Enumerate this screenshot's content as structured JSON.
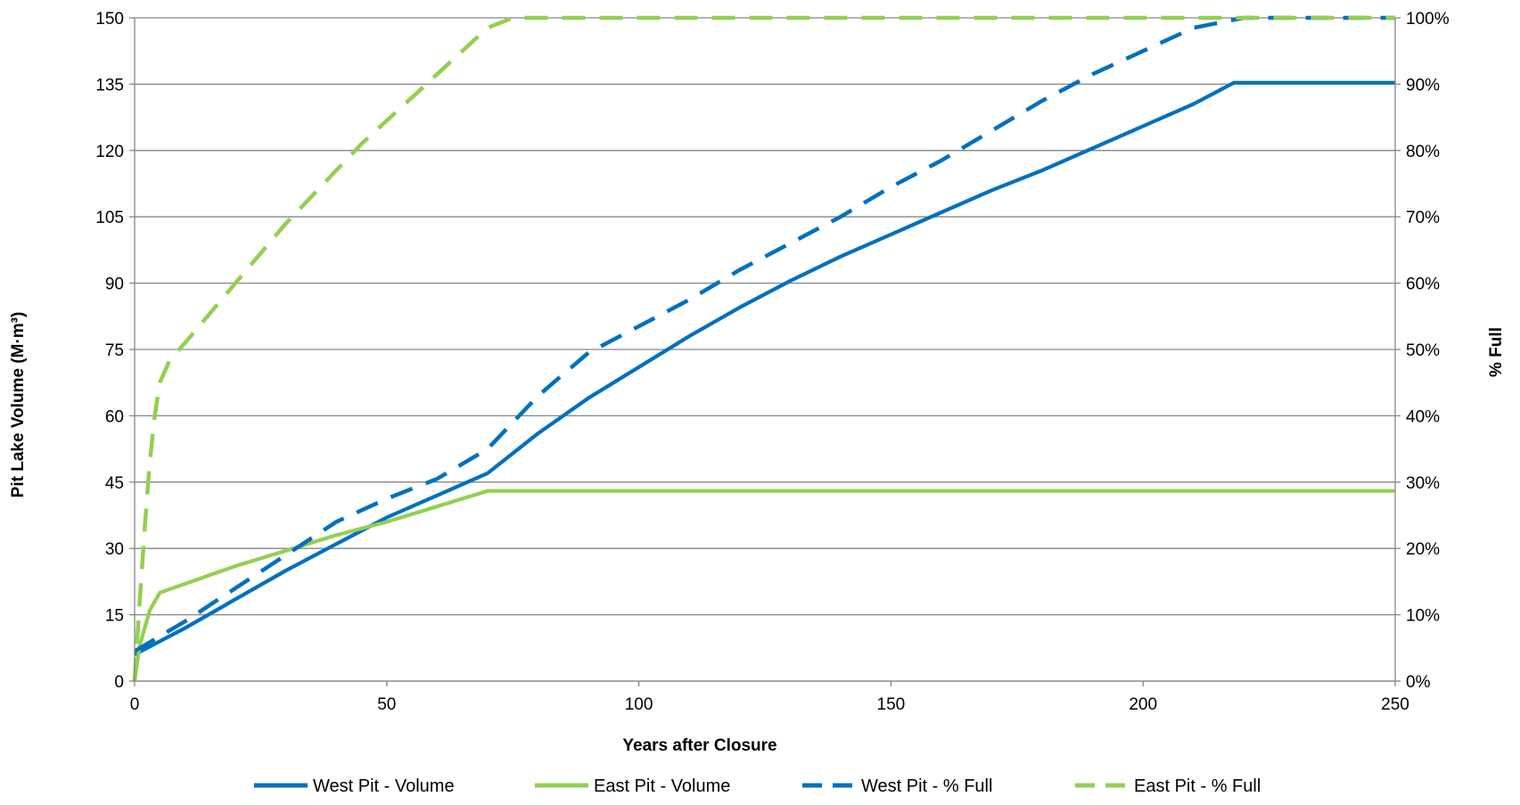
{
  "chart_data": {
    "type": "line",
    "title": "",
    "xlabel": "Years after Closure",
    "ylabel": "Pit Lake Volume (M·m³)",
    "y2label": "% Full",
    "xlim": [
      0,
      250
    ],
    "ylim": [
      0,
      150
    ],
    "y2lim": [
      0,
      100
    ],
    "x_ticks": [
      "0",
      "50",
      "100",
      "150",
      "200",
      "250"
    ],
    "y_ticks": [
      "0",
      "15",
      "30",
      "45",
      "60",
      "75",
      "90",
      "105",
      "120",
      "135",
      "150"
    ],
    "y2_ticks": [
      "0%",
      "10%",
      "20%",
      "30%",
      "40%",
      "50%",
      "60%",
      "70%",
      "80%",
      "90%",
      "100%"
    ],
    "grid": "horizontal",
    "legend_position": "bottom",
    "colors": {
      "blue": "#0070c0",
      "green": "#92d050",
      "grid": "#868686"
    },
    "series": [
      {
        "name": "West Pit - Volume",
        "axis": "left",
        "color": "#0070c0",
        "style": "solid",
        "x": [
          0,
          10,
          20,
          30,
          40,
          50,
          60,
          70,
          80,
          90,
          100,
          110,
          120,
          130,
          140,
          150,
          160,
          170,
          180,
          190,
          200,
          210,
          218,
          250
        ],
        "y": [
          6,
          12,
          18.5,
          25,
          31,
          37,
          42,
          47,
          56,
          64,
          71,
          78,
          84.5,
          90.5,
          96,
          101,
          106,
          111,
          115.5,
          120.5,
          125.5,
          130.5,
          135.3,
          135.3
        ]
      },
      {
        "name": "East Pit - Volume",
        "axis": "left",
        "color": "#92d050",
        "style": "solid",
        "x": [
          0,
          0.5,
          1,
          2,
          3,
          4,
          5,
          10,
          20,
          30,
          40,
          50,
          60,
          70,
          250
        ],
        "y": [
          0,
          4,
          8,
          12,
          16,
          18,
          20,
          22,
          26,
          29.5,
          33,
          36,
          39.5,
          43,
          43
        ]
      },
      {
        "name": "West Pit - % Full",
        "axis": "right",
        "color": "#0070c0",
        "style": "dashed",
        "x": [
          0,
          10,
          20,
          30,
          40,
          50,
          60,
          70,
          80,
          90,
          100,
          110,
          120,
          130,
          140,
          150,
          160,
          170,
          180,
          190,
          200,
          210,
          220,
          250
        ],
        "y": [
          4.5,
          9,
          14,
          19,
          24,
          27.5,
          30.5,
          35,
          43,
          49.5,
          53.5,
          57.5,
          62,
          66,
          70,
          74.5,
          78.5,
          83,
          87.5,
          91.5,
          95,
          98.5,
          100,
          100
        ]
      },
      {
        "name": "East Pit - % Full",
        "axis": "right",
        "color": "#92d050",
        "style": "dashed",
        "x": [
          0,
          0.5,
          1,
          2,
          3,
          4,
          5,
          7,
          10,
          15,
          20,
          25,
          30,
          35,
          40,
          45,
          50,
          55,
          60,
          65,
          70,
          75,
          250
        ],
        "y": [
          0,
          6,
          12,
          23,
          33,
          40,
          45,
          48.5,
          51,
          55.5,
          60,
          64.5,
          69,
          73,
          77,
          81,
          84.5,
          88,
          91.5,
          95,
          98.5,
          100,
          100
        ]
      }
    ]
  }
}
